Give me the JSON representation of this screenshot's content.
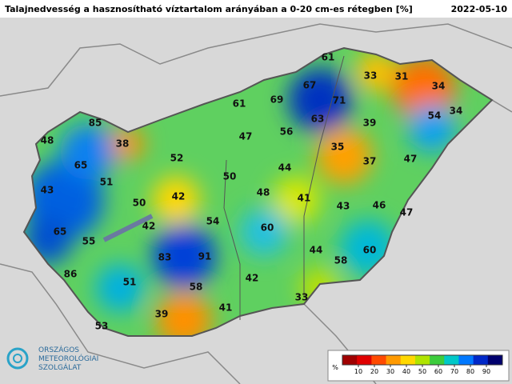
{
  "header": {
    "title": "Talajnedvesség a hasznosítható víztartalom arányában a 0-20 cm-es rétegben [%]",
    "date": "2022-05-10"
  },
  "stations": [
    61,
    33,
    31,
    34,
    67,
    69,
    71,
    61,
    85,
    63,
    39,
    54,
    34,
    56,
    47,
    48,
    38,
    35,
    37,
    47,
    52,
    65,
    44,
    51,
    50,
    43,
    48,
    41,
    42,
    50,
    43,
    46,
    47,
    54,
    60,
    42,
    65,
    55,
    44,
    60,
    58,
    83,
    91,
    86,
    51,
    42,
    58,
    33,
    41,
    39,
    53
  ],
  "legend": {
    "unit": "%",
    "lim": [
      0,
      100
    ],
    "ticks": [
      10,
      20,
      30,
      40,
      50,
      60,
      70,
      80,
      90
    ],
    "colors": [
      "#a00000",
      "#e00000",
      "#ff4a00",
      "#ff9a00",
      "#ffd800",
      "#b0e400",
      "#3ccc3c",
      "#00c8c8",
      "#0078ff",
      "#0028c8",
      "#00006e"
    ]
  },
  "logo": {
    "line1": "ORSZÁGOS",
    "line2": "METEOROLÓGIAI",
    "line3": "SZOLGÁLAT"
  }
}
